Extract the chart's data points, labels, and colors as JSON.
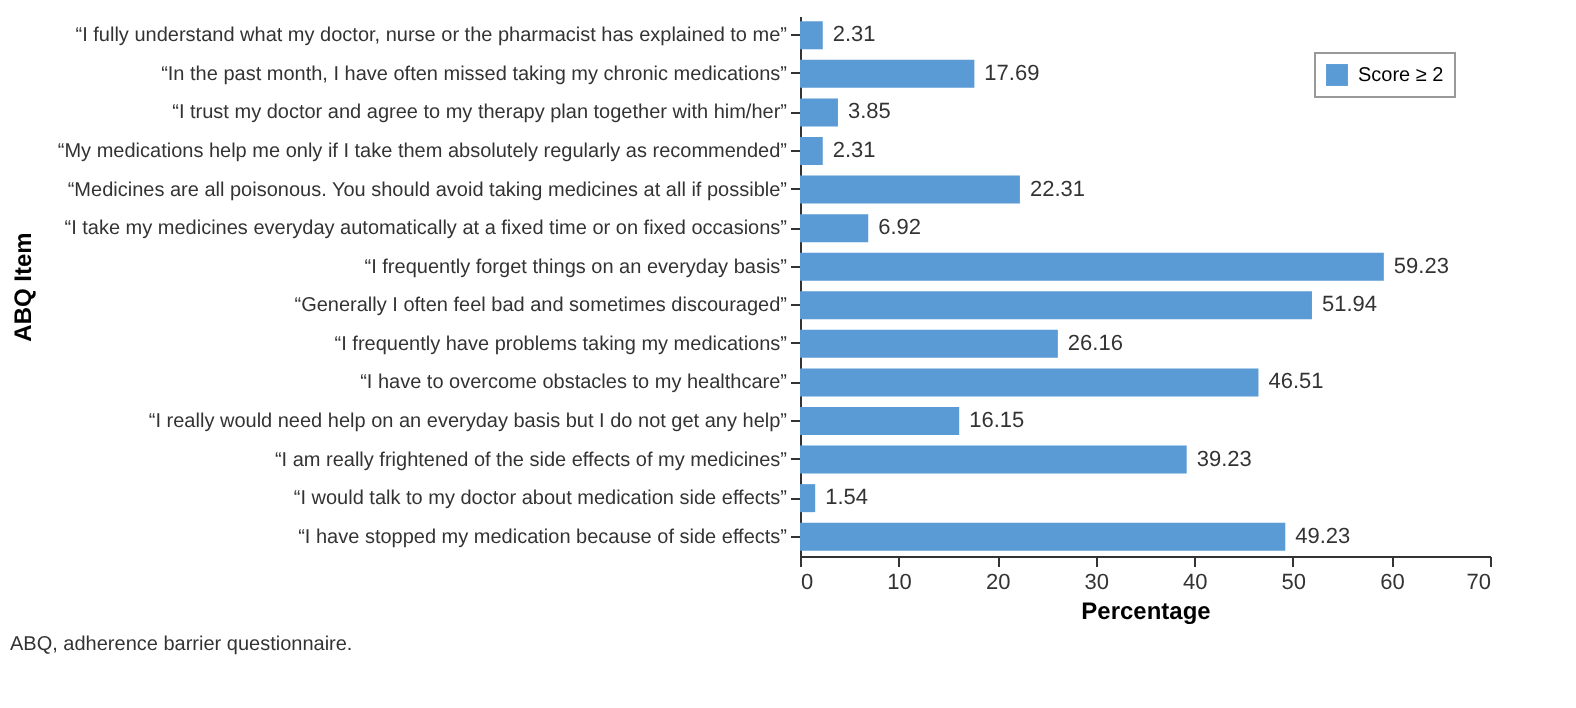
{
  "chart_data": {
    "type": "bar",
    "orientation": "horizontal",
    "xlabel": "Percentage",
    "ylabel": "ABQ Item",
    "categories": [
      "“I fully understand what my doctor, nurse or the pharmacist has explained to me”",
      "“In the past month, I have often missed taking my chronic medications”",
      "“I trust my doctor and agree to my therapy plan together with him/her”",
      "“My medications help me only if I take them absolutely regularly as recommended”",
      "“Medicines are all poisonous. You should avoid taking medicines at all if possible”",
      "“I take my medicines everyday automatically at a fixed time or on fixed occasions”",
      "“I frequently forget things on an everyday basis”",
      "“Generally I often feel bad and sometimes discouraged”",
      "“I frequently have problems taking my medications”",
      "“I have to overcome obstacles to my healthcare”",
      "“I really would need help on an everyday basis but I do not get any help”",
      "“I am really frightened of the side effects of my medicines”",
      "“I would talk to my doctor about medication side effects”",
      "“I have stopped my medication because of side effects”"
    ],
    "series": [
      {
        "name": "Score ≥ 2",
        "color": "#5b9bd5",
        "values": [
          2.31,
          17.69,
          3.85,
          2.31,
          22.31,
          6.92,
          59.23,
          51.94,
          26.16,
          46.51,
          16.15,
          39.23,
          1.54,
          49.23
        ]
      }
    ],
    "xlim": [
      0,
      70
    ],
    "xticks": [
      0,
      10,
      20,
      30,
      40,
      50,
      60,
      70
    ],
    "grid": false,
    "legend": "top right",
    "data_labels": true,
    "annotations": [
      "ABQ, adherence barrier questionnaire."
    ]
  }
}
